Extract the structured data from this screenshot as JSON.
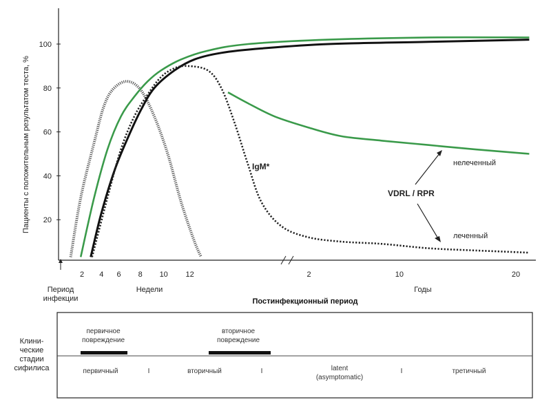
{
  "chart_data": {
    "type": "line",
    "ylabel": "Пациенты с положительным результатом теста, %",
    "yticks": [
      20,
      40,
      60,
      80,
      100
    ],
    "ylim": [
      0,
      110
    ],
    "week_ticks": [
      "2",
      "4",
      "6",
      "8",
      "10",
      "12"
    ],
    "year_ticks": [
      "2",
      "10",
      "20"
    ],
    "x_left_label_line1": "Период",
    "x_left_label_line2": "инфекции",
    "weeks_label": "Недели",
    "years_label": "Годы",
    "x_title": "Постинфекционный период",
    "series": [
      {
        "name": "IgM*",
        "label": "IgM*",
        "style": "dotted-dense",
        "color": "#555555",
        "points": [
          [
            1.5,
            3
          ],
          [
            3,
            30
          ],
          [
            5,
            55
          ],
          [
            6.5,
            72
          ],
          [
            8,
            80
          ],
          [
            10,
            83
          ],
          [
            12,
            79
          ],
          [
            14,
            67
          ],
          [
            16,
            50
          ],
          [
            18,
            28
          ],
          [
            20,
            10
          ],
          [
            21,
            3
          ]
        ]
      },
      {
        "name": "black-solid",
        "style": "solid",
        "color": "#111111",
        "points": [
          [
            4.5,
            3
          ],
          [
            6,
            22
          ],
          [
            8,
            42
          ],
          [
            10,
            57
          ],
          [
            12,
            70
          ],
          [
            14,
            80
          ],
          [
            17,
            88
          ],
          [
            20,
            93
          ],
          [
            24,
            96
          ],
          [
            30,
            98
          ],
          [
            40,
            100
          ],
          [
            55,
            101
          ],
          [
            70,
            102
          ]
        ]
      },
      {
        "name": "green-top",
        "style": "solid",
        "color": "#3a9a4a",
        "points": [
          [
            3,
            3
          ],
          [
            5,
            30
          ],
          [
            7,
            52
          ],
          [
            9,
            67
          ],
          [
            11,
            76
          ],
          [
            13,
            83
          ],
          [
            15,
            88
          ],
          [
            18,
            93
          ],
          [
            22,
            97
          ],
          [
            28,
            100
          ],
          [
            40,
            102
          ],
          [
            55,
            103
          ],
          [
            70,
            103
          ]
        ]
      },
      {
        "name": "VDRL-dotted",
        "style": "dotted",
        "color": "#222222",
        "points": [
          [
            4.7,
            3
          ],
          [
            7,
            30
          ],
          [
            9,
            52
          ],
          [
            11,
            67
          ],
          [
            13,
            77
          ],
          [
            15,
            85
          ],
          [
            17,
            89
          ],
          [
            19,
            90
          ],
          [
            22,
            88
          ],
          [
            24,
            80
          ],
          [
            26,
            64
          ],
          [
            28,
            45
          ],
          [
            30,
            28
          ],
          [
            33,
            17
          ],
          [
            37,
            12
          ],
          [
            42,
            10
          ],
          [
            48,
            9
          ],
          [
            55,
            7
          ],
          [
            62,
            6
          ],
          [
            70,
            5
          ]
        ]
      },
      {
        "name": "нелеченный",
        "style": "solid",
        "color": "#3a9a4a",
        "points": [
          [
            25,
            78
          ],
          [
            28,
            73
          ],
          [
            32,
            67
          ],
          [
            37,
            62
          ],
          [
            42,
            58
          ],
          [
            48,
            56
          ],
          [
            55,
            54
          ],
          [
            62,
            52
          ],
          [
            70,
            50
          ]
        ]
      }
    ],
    "annotations": {
      "igm": "IgM*",
      "vdrl": "VDRL / RPR",
      "untreated": "нелеченный",
      "treated": "леченный"
    }
  },
  "stages_panel": {
    "row_label_line1": "Клини-",
    "row_label_line2": "ческие",
    "row_label_line3": "стадии",
    "row_label_line4": "сифилиса",
    "lesion_primary_line1": "первичное",
    "lesion_primary_line2": "повреждение",
    "lesion_secondary_line1": "вторичное",
    "lesion_secondary_line2": "повреждение",
    "stage_primary": "первичный",
    "stage_secondary": "вторичный",
    "stage_latent_line1": "latent",
    "stage_latent_line2": "(asymptomatic)",
    "stage_tertiary": "третичный",
    "separator": "I"
  }
}
